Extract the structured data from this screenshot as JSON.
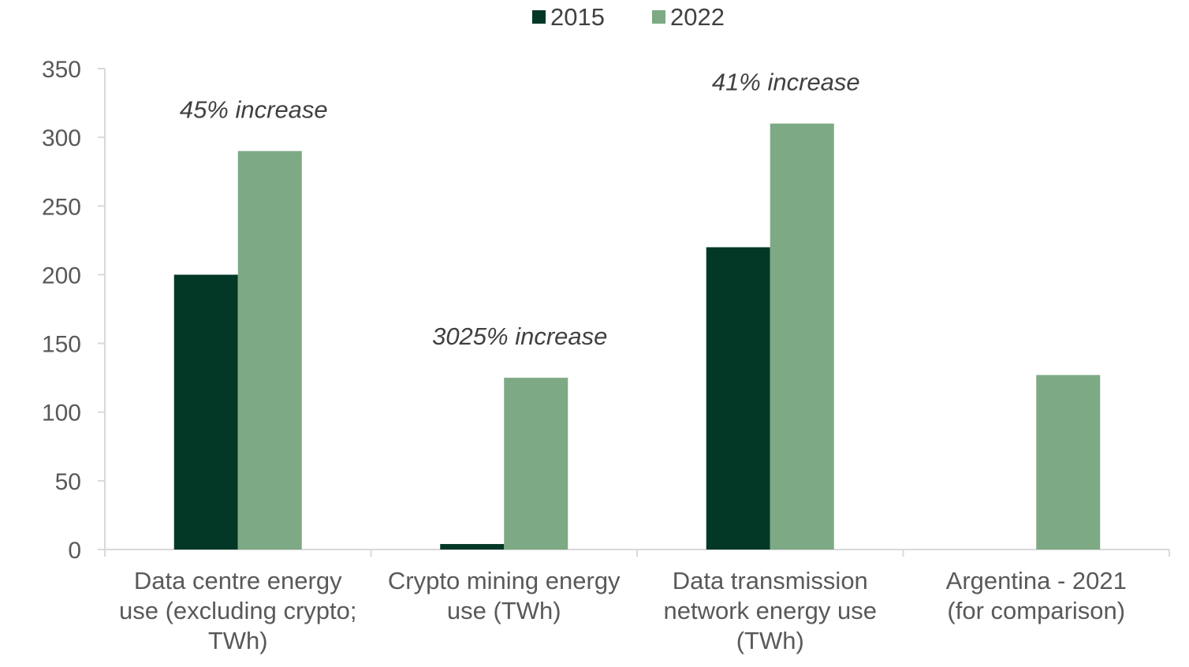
{
  "chart_data": {
    "type": "bar",
    "categories": [
      [
        "Data centre energy",
        "use (excluding crypto;",
        "TWh)"
      ],
      [
        "Crypto mining energy",
        "use (TWh)"
      ],
      [
        "Data transmission",
        "network energy use",
        "(TWh)"
      ],
      [
        "Argentina - 2021",
        "(for comparison)"
      ]
    ],
    "series": [
      {
        "name": "2015",
        "color": "#023825",
        "values": [
          200,
          4,
          220,
          null
        ]
      },
      {
        "name": "2022",
        "color": "#7daa84",
        "values": [
          290,
          125,
          310,
          127
        ]
      }
    ],
    "annotations": [
      "45% increase",
      "3025% increase",
      "41% increase",
      ""
    ],
    "ylim": [
      0,
      350
    ],
    "yticks": [
      0,
      50,
      100,
      150,
      200,
      250,
      300,
      350
    ],
    "xlabel": "",
    "ylabel": "",
    "legend_position": "top-center",
    "grid": false
  }
}
